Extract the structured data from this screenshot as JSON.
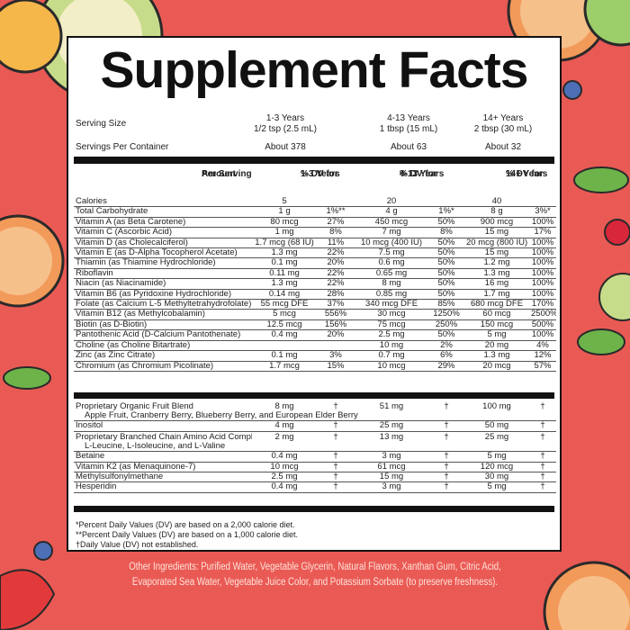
{
  "title": "Supplement Facts",
  "serving_size": {
    "label": "Serving Size",
    "cols": [
      {
        "line1": "1-3 Years",
        "line2": "1/2 tsp (2.5 mL)"
      },
      {
        "line1": "4-13 Years",
        "line2": "1 tbsp (15 mL)"
      },
      {
        "line1": "14+ Years",
        "line2": "2 tbsp (30 mL)"
      }
    ]
  },
  "servings_per_container": {
    "label": "Servings Per Container",
    "values": [
      "About 378",
      "About 63",
      "About 32"
    ]
  },
  "header": {
    "amount_l1": "Amount",
    "amount_l2": "Per Serving",
    "dv1_l1": "% DV for",
    "dv1_l2": "1-3 Years",
    "dv2_l1": "% DV for",
    "dv2_l2": "4-13 Years",
    "dv3_l1": "% DV for",
    "dv3_l2": "14+ Years"
  },
  "nutrients": [
    {
      "name": "Calories",
      "a1": "5",
      "d1": "",
      "a2": "20",
      "d2": "",
      "a3": "40",
      "d3": ""
    },
    {
      "name": "Total Carbohydrate",
      "a1": "1 g",
      "d1": "1%**",
      "a2": "4 g",
      "d2": "1%*",
      "a3": "8 g",
      "d3": "3%*"
    },
    {
      "name": "Vitamin A (as Beta Carotene)",
      "a1": "80 mcg",
      "d1": "27%",
      "a2": "450 mcg",
      "d2": "50%",
      "a3": "900 mcg",
      "d3": "100%"
    },
    {
      "name": "Vitamin C (Ascorbic Acid)",
      "a1": "1 mg",
      "d1": "8%",
      "a2": "7 mg",
      "d2": "8%",
      "a3": "15 mg",
      "d3": "17%"
    },
    {
      "name": "Vitamin D (as Cholecalciferol)",
      "a1": "1.7 mcg (68 IU)",
      "d1": "11%",
      "a2": "10 mcg (400 IU)",
      "d2": "50%",
      "a3": "20 mcg (800 IU)",
      "d3": "100%"
    },
    {
      "name": "Vitamin E (as D-Alpha Tocopherol Acetate)",
      "a1": "1.3 mg",
      "d1": "22%",
      "a2": "7.5 mg",
      "d2": "50%",
      "a3": "15 mg",
      "d3": "100%"
    },
    {
      "name": "Thiamin (as Thiamine Hydrochloride)",
      "a1": "0.1 mg",
      "d1": "20%",
      "a2": "0.6 mg",
      "d2": "50%",
      "a3": "1.2 mg",
      "d3": "100%"
    },
    {
      "name": "Riboflavin",
      "a1": "0.11 mg",
      "d1": "22%",
      "a2": "0.65 mg",
      "d2": "50%",
      "a3": "1.3 mg",
      "d3": "100%"
    },
    {
      "name": "Niacin (as Niacinamide)",
      "a1": "1.3 mg",
      "d1": "22%",
      "a2": "8 mg",
      "d2": "50%",
      "a3": "16 mg",
      "d3": "100%"
    },
    {
      "name": "Vitamin B6 (as Pyridoxine Hydrochloride)",
      "a1": "0.14 mg",
      "d1": "28%",
      "a2": "0.85 mg",
      "d2": "50%",
      "a3": "1.7 mg",
      "d3": "100%"
    },
    {
      "name": "Folate (as Calcium L-5 Methyltetrahydrofolate)",
      "a1": "55 mcg DFE",
      "d1": "37%",
      "a2": "340 mcg DFE",
      "d2": "85%",
      "a3": "680 mcg DFE",
      "d3": "170%"
    },
    {
      "name": "Vitamin B12 (as Methylcobalamin)",
      "a1": "5 mcg",
      "d1": "556%",
      "a2": "30 mcg",
      "d2": "1250%",
      "a3": "60 mcg",
      "d3": "2500%"
    },
    {
      "name": "Biotin (as D-Biotin)",
      "a1": "12.5 mcg",
      "d1": "156%",
      "a2": "75 mcg",
      "d2": "250%",
      "a3": "150 mcg",
      "d3": "500%"
    },
    {
      "name": "Pantothenic Acid (D-Calcium Pantothenate)",
      "a1": "0.4 mg",
      "d1": "20%",
      "a2": "2.5 mg",
      "d2": "50%",
      "a3": "5 mg",
      "d3": "100%"
    },
    {
      "name": "Choline (as Choline Bitartrate)",
      "a1": "",
      "d1": "",
      "a2": "10 mg",
      "d2": "2%",
      "a3": "20 mg",
      "d3": "4%"
    },
    {
      "name": "Zinc (as Zinc Citrate)",
      "a1": "0.1 mg",
      "d1": "3%",
      "a2": "0.7 mg",
      "d2": "6%",
      "a3": "1.3 mg",
      "d3": "12%"
    },
    {
      "name": "Chromium (as Chromium Picolinate)",
      "a1": "1.7 mcg",
      "d1": "15%",
      "a2": "10 mcg",
      "d2": "29%",
      "a3": "20 mcg",
      "d3": "57%"
    }
  ],
  "other_items": [
    {
      "name": "Proprietary Organic Fruit Blend",
      "sub": "Apple Fruit, Cranberry Berry, Blueberry Berry, and European Elder Berry",
      "a1": "8 mg",
      "d1": "†",
      "a2": "51 mg",
      "d2": "†",
      "a3": "100 mg",
      "d3": "†"
    },
    {
      "name": "Inositol",
      "sub": "",
      "a1": "4 mg",
      "d1": "†",
      "a2": "25 mg",
      "d2": "†",
      "a3": "50 mg",
      "d3": "†"
    },
    {
      "name": "Proprietary Branched Chain Amino Acid Complex",
      "sub": "L-Leucine, L-Isoleucine, and L-Valine",
      "a1": "2 mg",
      "d1": "†",
      "a2": "13 mg",
      "d2": "†",
      "a3": "25 mg",
      "d3": "†"
    },
    {
      "name": "Betaine",
      "sub": "",
      "a1": "0.4 mg",
      "d1": "†",
      "a2": "3 mg",
      "d2": "†",
      "a3": "5 mg",
      "d3": "†"
    },
    {
      "name": "Vitamin K2 (as Menaquinone-7)",
      "sub": "",
      "a1": "10 mcg",
      "d1": "†",
      "a2": "61 mcg",
      "d2": "†",
      "a3": "120 mcg",
      "d3": "†"
    },
    {
      "name": "Methylsulfonylmethane",
      "sub": "",
      "a1": "2.5 mg",
      "d1": "†",
      "a2": "15 mg",
      "d2": "†",
      "a3": "30 mg",
      "d3": "†"
    },
    {
      "name": "Hesperidin",
      "sub": "",
      "a1": "0.4 mg",
      "d1": "†",
      "a2": "3 mg",
      "d2": "†",
      "a3": "5 mg",
      "d3": "†"
    }
  ],
  "footnotes": [
    "*Percent Daily Values (DV) are based on a 2,000 calorie diet.",
    "**Percent Daily Values (DV) are based on a 1,000 calorie diet.",
    "†Daily Value (DV) not established."
  ],
  "other_ingredients": "Other Ingredients: Purified Water, Vegetable Glycerin, Natural Flavors, Xanthan Gum, Citric Acid, Evaporated Sea Water, Vegetable Juice Color, and Potassium Sorbate (to preserve freshness).",
  "colors": {
    "background": "#ea5a55",
    "panel": "#ffffff",
    "ink": "#111111",
    "other_text": "#fde3d9"
  }
}
